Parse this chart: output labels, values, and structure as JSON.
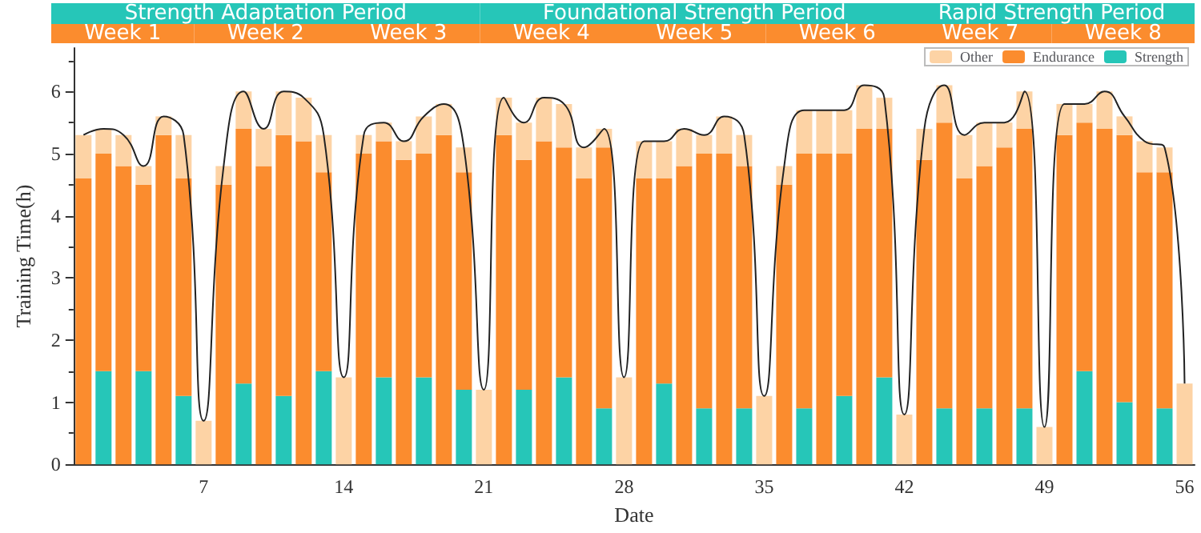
{
  "chart_data": {
    "type": "bar",
    "stacked": true,
    "xlabel": "Date",
    "ylabel": "Training Time(h)",
    "categories": [
      null,
      null,
      null,
      null,
      null,
      null,
      "7",
      null,
      null,
      null,
      null,
      null,
      null,
      "14",
      null,
      null,
      null,
      null,
      null,
      null,
      "21",
      null,
      null,
      null,
      null,
      null,
      null,
      "28",
      null,
      null,
      null,
      null,
      null,
      null,
      "35",
      null,
      null,
      null,
      null,
      null,
      null,
      "42",
      null,
      null,
      null,
      null,
      null,
      null,
      "49",
      null,
      null,
      null,
      null,
      null,
      null,
      "56"
    ],
    "series": [
      {
        "name": "Strength",
        "color": "#26c6b8",
        "values": [
          0,
          1.5,
          0,
          1.5,
          0,
          1.1,
          0,
          0,
          1.3,
          0,
          1.1,
          0,
          1.5,
          0,
          0,
          1.4,
          0,
          1.4,
          0,
          1.2,
          0,
          0,
          1.2,
          0,
          1.4,
          0,
          0.9,
          0,
          0,
          1.3,
          0,
          0.9,
          0,
          0.9,
          0,
          0,
          0.9,
          0,
          1.1,
          0,
          1.4,
          0,
          0,
          0.9,
          0,
          0.9,
          0,
          0.9,
          0,
          0,
          1.5,
          0,
          1.0,
          0,
          0.9,
          0
        ]
      },
      {
        "name": "Endurance",
        "color": "#fb8c2e",
        "values": [
          4.6,
          3.5,
          4.8,
          3.0,
          5.3,
          3.5,
          0,
          4.5,
          4.1,
          4.8,
          4.2,
          5.2,
          3.2,
          0,
          5.0,
          3.8,
          4.9,
          3.6,
          5.3,
          3.5,
          0,
          5.3,
          3.7,
          5.2,
          3.7,
          4.6,
          4.2,
          0,
          4.6,
          3.3,
          4.8,
          4.1,
          5.0,
          3.9,
          0,
          4.5,
          4.1,
          5.0,
          3.9,
          5.4,
          4.0,
          0,
          4.9,
          4.6,
          4.6,
          3.9,
          5.1,
          4.5,
          0,
          5.3,
          4.0,
          5.4,
          4.3,
          4.7,
          3.8,
          0
        ]
      },
      {
        "name": "Other",
        "color": "#fdd3a5",
        "values": [
          0.7,
          0.4,
          0.5,
          0.3,
          0.3,
          0.7,
          0.7,
          0.3,
          0.6,
          0.6,
          0.7,
          0.7,
          0.6,
          1.4,
          0.3,
          0.3,
          0.3,
          0.6,
          0.5,
          0.4,
          1.2,
          0.6,
          0.6,
          0.7,
          0.7,
          0.5,
          0.3,
          1.4,
          0.6,
          0.6,
          0.6,
          0.3,
          0.6,
          0.5,
          1.1,
          0.3,
          0.7,
          0.7,
          0.7,
          0.7,
          0.5,
          0.8,
          0.5,
          0.6,
          0.7,
          0.7,
          0.4,
          0.6,
          0.6,
          0.5,
          0.3,
          0.6,
          0.3,
          0.5,
          0.4,
          1.3
        ]
      },
      {
        "type": "line",
        "color": "#222222",
        "marker": "none",
        "values": [
          5.3,
          5.4,
          5.3,
          4.8,
          5.6,
          5.3,
          0.7,
          4.8,
          6.0,
          5.4,
          6.0,
          5.9,
          5.3,
          1.4,
          5.3,
          5.5,
          5.2,
          5.6,
          5.8,
          5.1,
          1.2,
          5.9,
          5.5,
          5.9,
          5.8,
          5.1,
          5.4,
          1.4,
          5.2,
          5.2,
          5.4,
          5.3,
          5.6,
          5.3,
          1.1,
          4.8,
          5.7,
          5.7,
          5.7,
          6.1,
          5.9,
          0.8,
          5.4,
          6.1,
          5.3,
          5.5,
          5.5,
          6.0,
          0.6,
          5.8,
          5.8,
          6.0,
          5.6,
          5.2,
          5.1,
          1.3
        ]
      }
    ],
    "ylim": [
      0,
      6.7
    ],
    "yticks": [
      0,
      1,
      2,
      3,
      4,
      5,
      6
    ],
    "grid": false,
    "legend": "top right",
    "annotations": [
      "Strength Adaptation Period",
      "Foundational Strength Period",
      "Rapid Strength Period",
      "Week 1",
      "Week 2",
      "Week 3",
      "Week 4",
      "Week 5",
      "Week 6",
      "Week 7",
      "Week 8"
    ]
  }
}
